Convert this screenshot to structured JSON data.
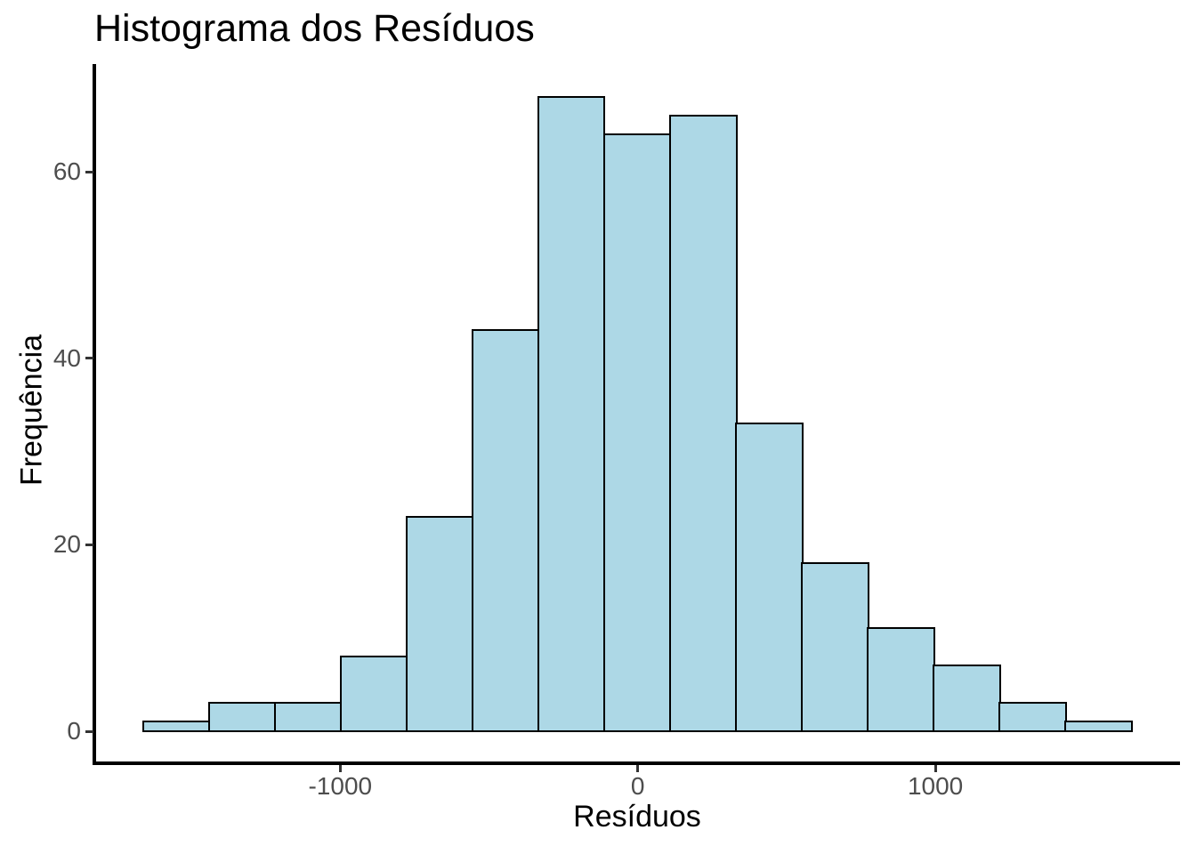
{
  "title": "Histograma dos Resíduos",
  "background": "#FFFFFF",
  "chart_data": {
    "type": "bar",
    "subtype": "histogram",
    "title": "Histograma dos Resíduos",
    "xlabel": "Resíduos",
    "ylabel": "Frequência",
    "bin_edges": [
      -1662,
      -1441,
      -1219,
      -998,
      -777,
      -555,
      -334,
      -112,
      109,
      331,
      552,
      774,
      995,
      1216,
      1438,
      1659
    ],
    "counts": [
      1,
      3,
      3,
      8,
      23,
      43,
      68,
      64,
      66,
      33,
      18,
      11,
      7,
      3,
      1
    ],
    "x_ticks": [
      -1000,
      0,
      1000
    ],
    "x_tick_labels": [
      "-1000",
      "0",
      "1000"
    ],
    "y_ticks": [
      0,
      20,
      40,
      60
    ],
    "y_tick_labels": [
      "0",
      "20",
      "40",
      "60"
    ],
    "xlim": [
      -1826,
      1823
    ],
    "ylim": [
      -3.4,
      71.4
    ],
    "grid": false,
    "legend": false,
    "bar_fill": "#ADD8E6",
    "bar_border": "#000000"
  },
  "colors": {
    "axis_line": "#000000",
    "tick_mark": "#333333",
    "tick_label": "#4D4D4D",
    "axis_title": "#000000",
    "plot_title": "#000000"
  }
}
